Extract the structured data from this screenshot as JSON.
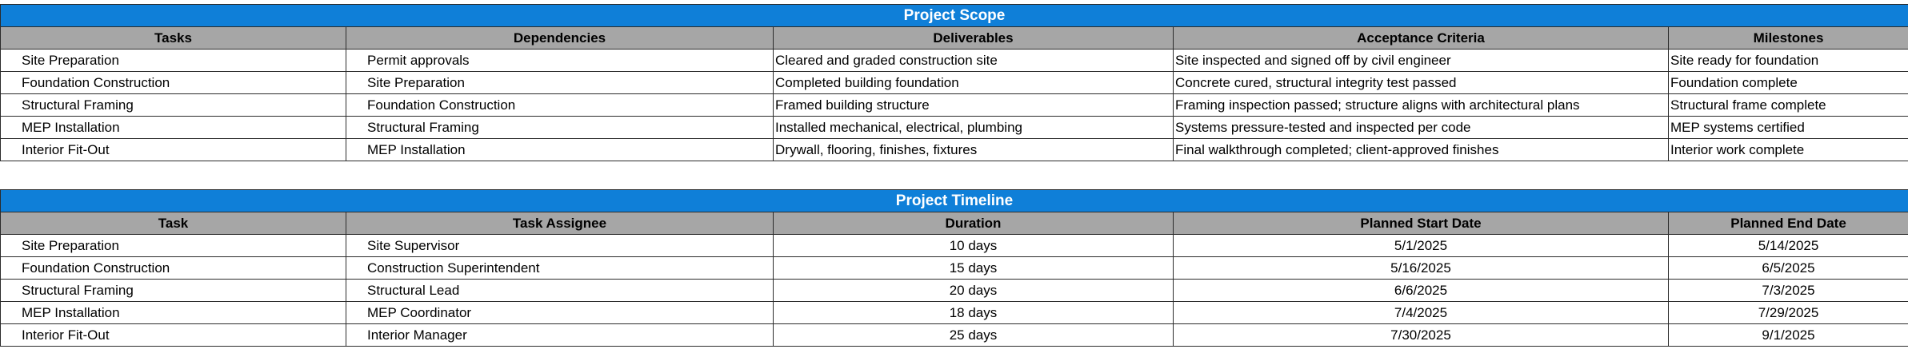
{
  "scope": {
    "title": "Project Scope",
    "headers": [
      "Tasks",
      "Dependencies",
      "Deliverables",
      "Acceptance Criteria",
      "Milestones"
    ],
    "rows": [
      [
        "Site Preparation",
        "Permit approvals",
        "Cleared and graded construction site",
        "Site inspected and signed off by civil engineer",
        "Site ready for foundation"
      ],
      [
        "Foundation Construction",
        "Site Preparation",
        "Completed building foundation",
        "Concrete cured, structural integrity test passed",
        "Foundation complete"
      ],
      [
        "Structural Framing",
        "Foundation Construction",
        "Framed building structure",
        "Framing inspection passed; structure aligns with architectural plans",
        "Structural frame complete"
      ],
      [
        "MEP Installation",
        "Structural Framing",
        "Installed mechanical, electrical, plumbing",
        "Systems pressure-tested and inspected per code",
        "MEP systems certified"
      ],
      [
        "Interior Fit-Out",
        "MEP Installation",
        "Drywall, flooring, finishes, fixtures",
        "Final walkthrough completed; client-approved finishes",
        "Interior work complete"
      ]
    ]
  },
  "timeline": {
    "title": "Project Timeline",
    "headers": [
      "Task",
      "Task Assignee",
      "Duration",
      "Planned Start Date",
      "Planned End Date"
    ],
    "rows": [
      [
        "Site Preparation",
        "Site Supervisor",
        "10 days",
        "5/1/2025",
        "5/14/2025"
      ],
      [
        "Foundation Construction",
        "Construction Superintendent",
        "15 days",
        "5/16/2025",
        "6/5/2025"
      ],
      [
        "Structural Framing",
        "Structural Lead",
        "20 days",
        "6/6/2025",
        "7/3/2025"
      ],
      [
        "MEP Installation",
        "MEP Coordinator",
        "18 days",
        "7/4/2025",
        "7/29/2025"
      ],
      [
        "Interior Fit-Out",
        "Interior Manager",
        "25 days",
        "7/30/2025",
        "9/1/2025"
      ]
    ]
  }
}
